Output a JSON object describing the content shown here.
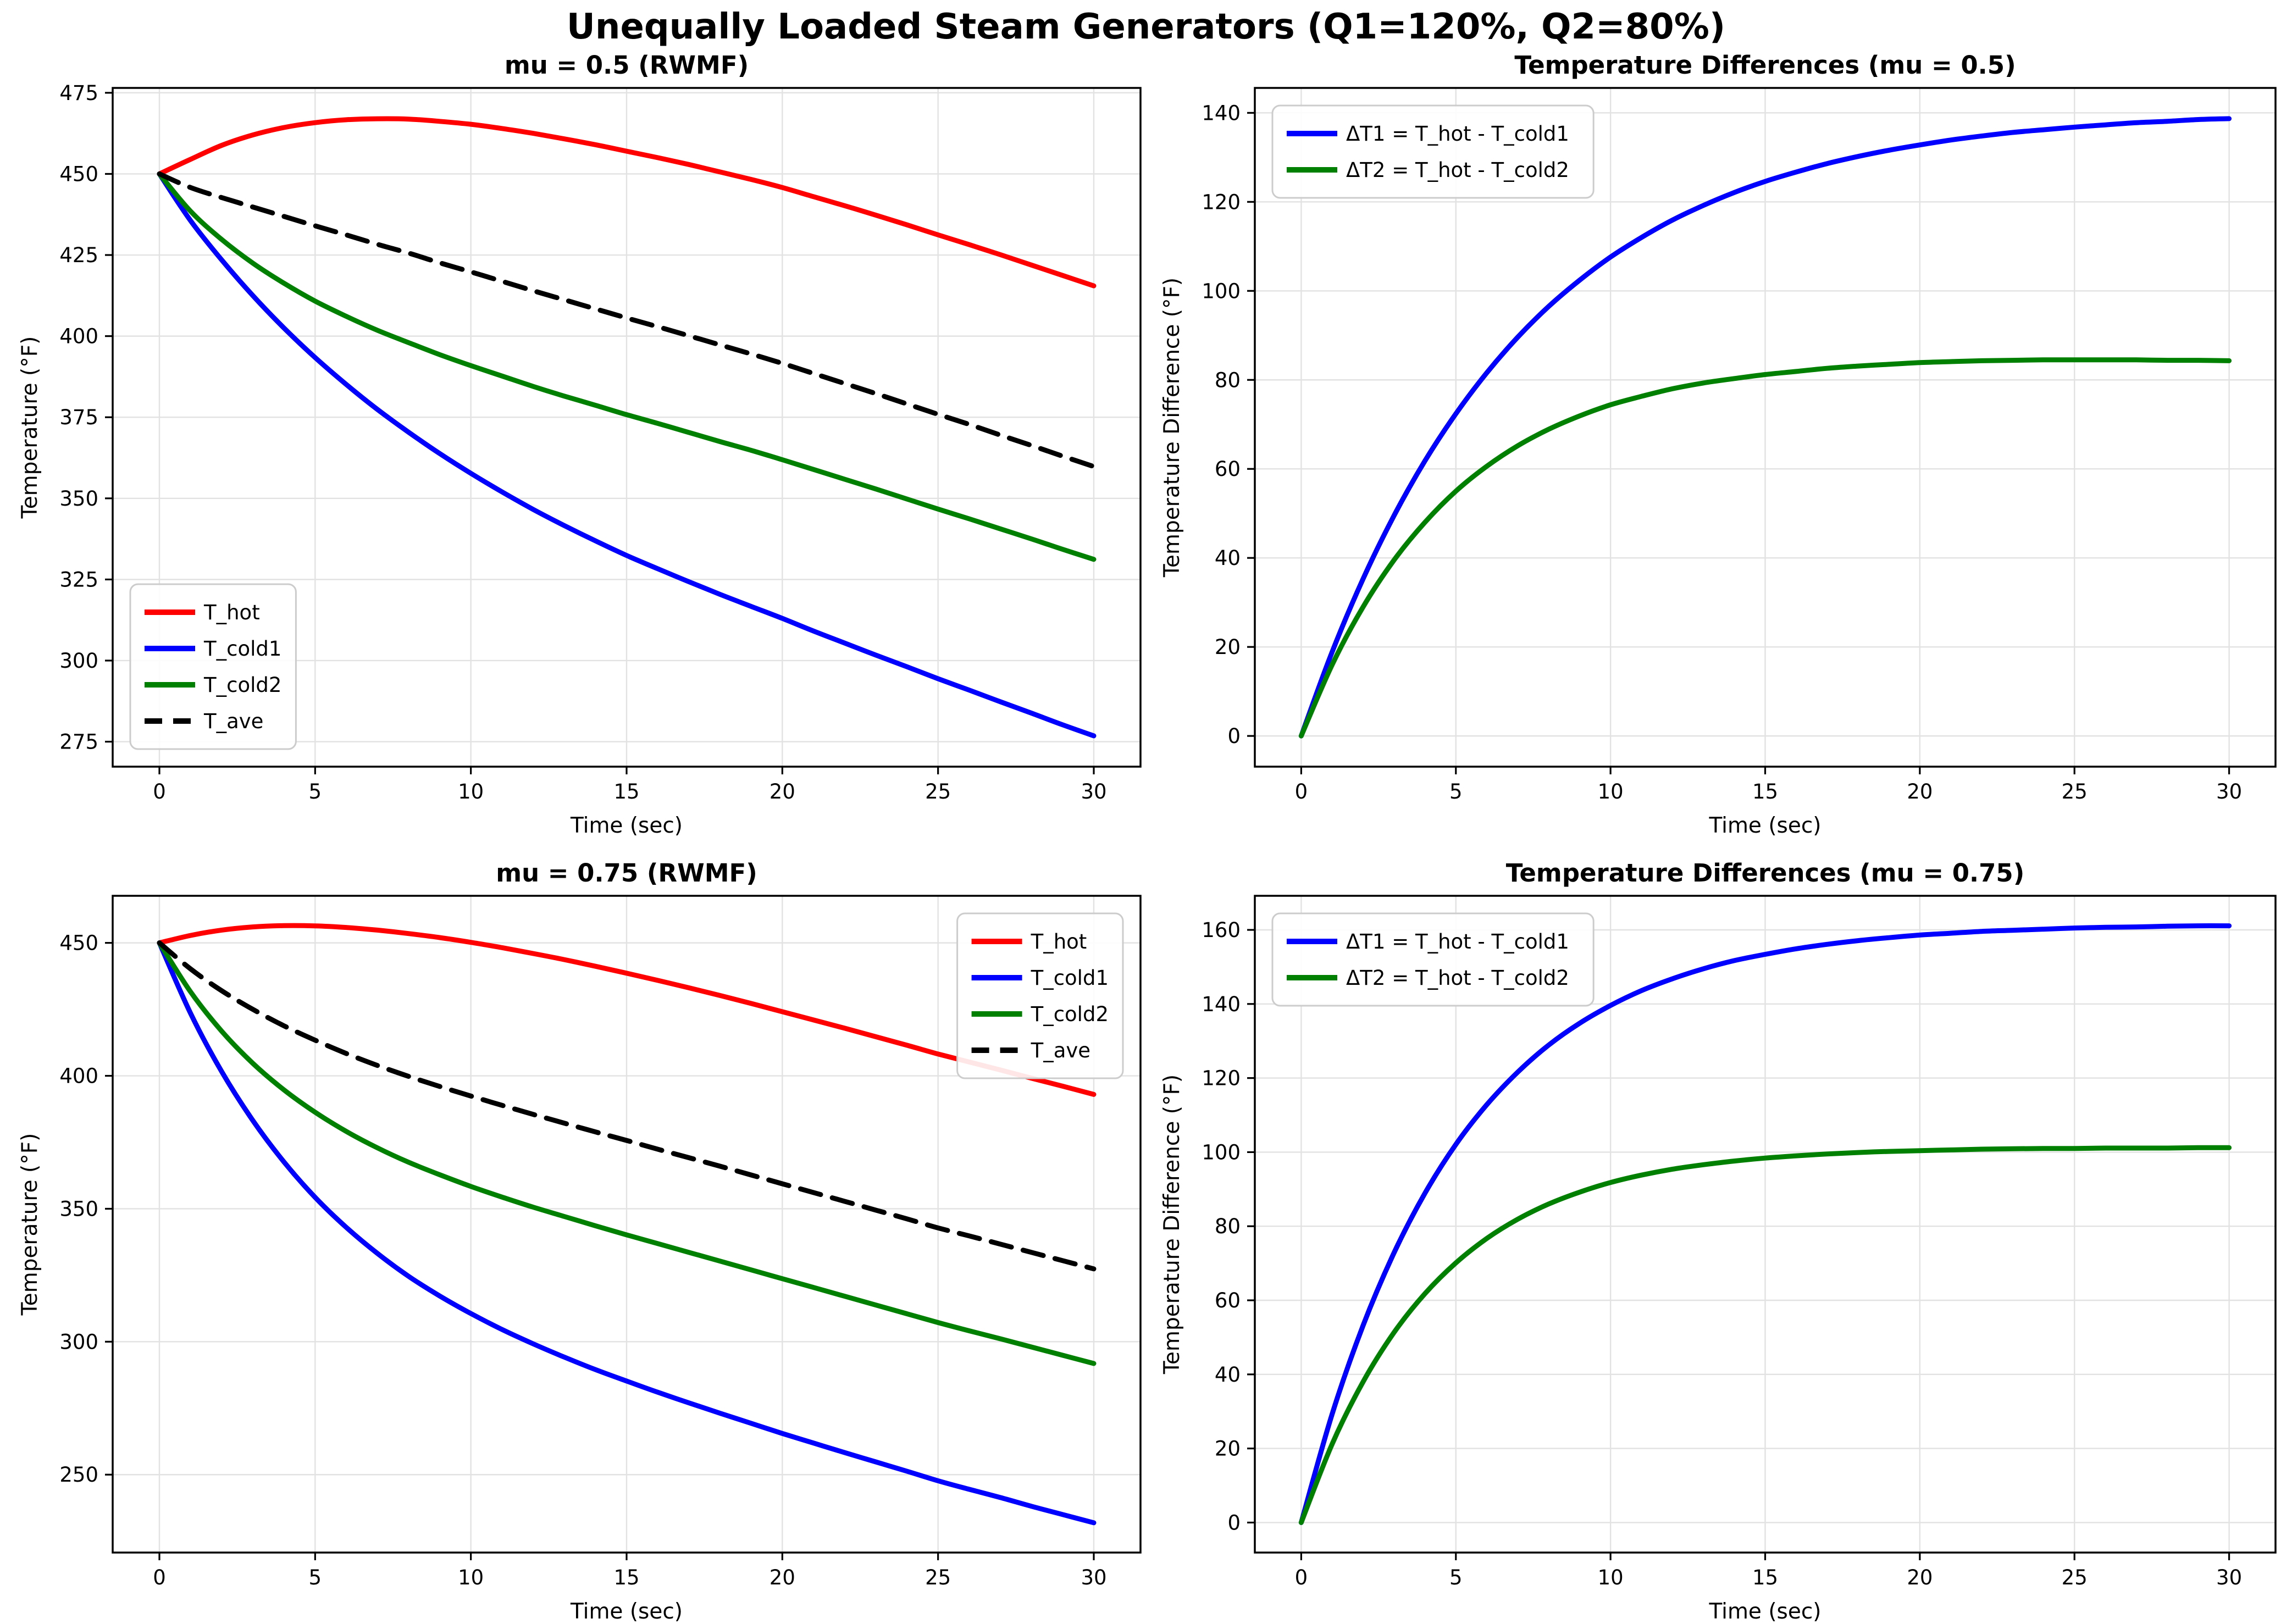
{
  "figure": {
    "suptitle": "Unequally Loaded Steam Generators (Q1=120%, Q2=80%)",
    "background": "#ffffff",
    "grid_color": "#e2e2e2",
    "frame_color": "#000000",
    "text_color": "#000000",
    "legend_border_color": "#cccccc"
  },
  "chart_data": [
    {
      "id": "temps-mu-0.5",
      "type": "line",
      "title": "mu = 0.5 (RWMF)",
      "xlabel": "Time (sec)",
      "ylabel": "Temperature (°F)",
      "xlim": [
        -1.5,
        31.5
      ],
      "ylim": [
        267.3,
        476.5
      ],
      "xticks": [
        0,
        5,
        10,
        15,
        20,
        25,
        30
      ],
      "yticks": [
        275,
        300,
        325,
        350,
        375,
        400,
        425,
        450,
        475
      ],
      "grid": true,
      "legend_loc": "lower-left",
      "x": [
        0,
        1,
        2,
        3,
        4,
        5,
        6,
        7,
        8,
        9,
        10,
        11,
        12,
        13,
        14,
        15,
        16,
        17,
        18,
        19,
        20,
        21,
        22,
        23,
        24,
        25,
        26,
        27,
        28,
        29,
        30
      ],
      "series": [
        {
          "label": "T_hot",
          "color": "#ff0000",
          "dash": false,
          "values": [
            450.0,
            454.5,
            458.8,
            462.0,
            464.3,
            465.8,
            466.7,
            467.0,
            466.9,
            466.2,
            465.3,
            464.0,
            462.5,
            460.8,
            459.0,
            457.0,
            455.0,
            452.9,
            450.6,
            448.3,
            445.8,
            443.0,
            440.2,
            437.3,
            434.3,
            431.2,
            428.2,
            425.1,
            421.9,
            418.7,
            415.5
          ]
        },
        {
          "label": "T_cold1",
          "color": "#0000ff",
          "dash": false,
          "values": [
            450.0,
            435.6,
            423.5,
            412.5,
            402.5,
            393.4,
            385.1,
            377.4,
            370.4,
            363.8,
            357.7,
            352.0,
            346.6,
            341.6,
            336.9,
            332.4,
            328.3,
            324.3,
            320.4,
            316.7,
            313.0,
            309.1,
            305.4,
            301.7,
            298.1,
            294.4,
            290.9,
            287.3,
            283.8,
            280.2,
            276.8
          ]
        },
        {
          "label": "T_cold2",
          "color": "#008000",
          "dash": false,
          "values": [
            450.0,
            438.5,
            429.8,
            422.5,
            416.3,
            410.8,
            406.1,
            401.8,
            398.0,
            394.3,
            390.9,
            387.7,
            384.5,
            381.5,
            378.7,
            375.8,
            373.1,
            370.3,
            367.5,
            364.8,
            361.9,
            358.9,
            355.9,
            352.9,
            349.8,
            346.7,
            343.7,
            340.6,
            337.5,
            334.3,
            331.2
          ]
        },
        {
          "label": "T_ave",
          "color": "#000000",
          "dash": true,
          "values": [
            450.0,
            445.8,
            442.7,
            439.8,
            436.9,
            434.0,
            431.2,
            428.3,
            425.6,
            422.6,
            419.8,
            416.9,
            414.0,
            411.2,
            408.4,
            405.6,
            402.9,
            400.1,
            397.3,
            394.5,
            391.6,
            388.5,
            385.4,
            382.3,
            379.1,
            375.9,
            372.8,
            369.5,
            366.3,
            363.0,
            359.8
          ]
        }
      ]
    },
    {
      "id": "diffs-mu-0.5",
      "type": "line",
      "title": "Temperature Differences (mu = 0.5)",
      "xlabel": "Time (sec)",
      "ylabel": "Temperature Difference (°F)",
      "xlim": [
        -1.5,
        31.5
      ],
      "ylim": [
        -6.9,
        145.6
      ],
      "xticks": [
        0,
        5,
        10,
        15,
        20,
        25,
        30
      ],
      "yticks": [
        0,
        20,
        40,
        60,
        80,
        100,
        120,
        140
      ],
      "grid": true,
      "legend_loc": "upper-left",
      "x": [
        0,
        1,
        2,
        3,
        4,
        5,
        6,
        7,
        8,
        9,
        10,
        11,
        12,
        13,
        14,
        15,
        16,
        17,
        18,
        19,
        20,
        21,
        22,
        23,
        24,
        25,
        26,
        27,
        28,
        29,
        30
      ],
      "series": [
        {
          "label": "ΔT1 = T_hot - T_cold1",
          "color": "#0000ff",
          "dash": false,
          "values": [
            0.0,
            18.9,
            35.3,
            49.5,
            61.8,
            72.4,
            81.6,
            89.6,
            96.5,
            102.4,
            107.6,
            112.0,
            115.9,
            119.2,
            122.1,
            124.6,
            126.7,
            128.6,
            130.2,
            131.6,
            132.8,
            133.9,
            134.8,
            135.6,
            136.2,
            136.8,
            137.3,
            137.8,
            138.1,
            138.5,
            138.7
          ]
        },
        {
          "label": "ΔT2 = T_hot - T_cold2",
          "color": "#008000",
          "dash": false,
          "values": [
            0.0,
            16.0,
            29.0,
            39.5,
            48.0,
            55.0,
            60.6,
            65.2,
            68.9,
            71.9,
            74.4,
            76.3,
            78.0,
            79.3,
            80.3,
            81.2,
            81.9,
            82.6,
            83.1,
            83.5,
            83.9,
            84.1,
            84.3,
            84.4,
            84.5,
            84.5,
            84.5,
            84.5,
            84.4,
            84.4,
            84.3
          ]
        }
      ]
    },
    {
      "id": "temps-mu-0.75",
      "type": "line",
      "title": "mu = 0.75 (RWMF)",
      "xlabel": "Time (sec)",
      "ylabel": "Temperature (°F)",
      "xlim": [
        -1.5,
        31.5
      ],
      "ylim": [
        220.7,
        467.7
      ],
      "xticks": [
        0,
        5,
        10,
        15,
        20,
        25,
        30
      ],
      "yticks": [
        250,
        300,
        350,
        400,
        450
      ],
      "grid": true,
      "legend_loc": "upper-right",
      "x": [
        0,
        1,
        2,
        3,
        4,
        5,
        6,
        7,
        8,
        9,
        10,
        11,
        12,
        13,
        14,
        15,
        16,
        17,
        18,
        19,
        20,
        21,
        22,
        23,
        24,
        25,
        26,
        27,
        28,
        29,
        30
      ],
      "series": [
        {
          "label": "T_hot",
          "color": "#ff0000",
          "dash": false,
          "values": [
            450.0,
            452.8,
            454.8,
            456.0,
            456.5,
            456.4,
            455.8,
            454.8,
            453.5,
            452.0,
            450.2,
            448.2,
            446.0,
            443.7,
            441.2,
            438.6,
            435.9,
            433.1,
            430.2,
            427.2,
            424.1,
            421.0,
            417.9,
            414.7,
            411.5,
            408.2,
            405.2,
            402.2,
            399.1,
            396.1,
            393.0
          ]
        },
        {
          "label": "T_cold1",
          "color": "#0000ff",
          "dash": false,
          "values": [
            450.0,
            423.5,
            401.6,
            383.2,
            367.6,
            354.3,
            343.0,
            333.2,
            324.6,
            317.2,
            310.6,
            304.6,
            299.2,
            294.2,
            289.5,
            285.2,
            281.0,
            277.0,
            273.1,
            269.3,
            265.5,
            261.9,
            258.3,
            254.8,
            251.3,
            247.7,
            244.5,
            241.4,
            238.1,
            235.0,
            231.9
          ]
        },
        {
          "label": "T_cold2",
          "color": "#008000",
          "dash": false,
          "values": [
            450.0,
            431.6,
            416.8,
            404.7,
            394.7,
            386.3,
            379.1,
            372.9,
            367.5,
            362.8,
            358.4,
            354.4,
            350.6,
            347.1,
            343.6,
            340.2,
            336.9,
            333.6,
            330.3,
            327.0,
            323.7,
            320.4,
            317.1,
            313.8,
            310.5,
            307.2,
            304.1,
            301.1,
            298.0,
            294.9,
            291.8
          ]
        },
        {
          "label": "T_ave",
          "color": "#000000",
          "dash": true,
          "values": [
            450.0,
            440.2,
            432.0,
            425.0,
            418.8,
            413.4,
            408.4,
            403.9,
            399.8,
            396.0,
            392.4,
            388.9,
            385.5,
            382.2,
            378.9,
            375.7,
            372.4,
            369.2,
            366.0,
            362.7,
            359.4,
            356.1,
            352.8,
            349.5,
            346.2,
            342.8,
            339.8,
            336.7,
            333.6,
            330.5,
            327.4
          ]
        }
      ]
    },
    {
      "id": "diffs-mu-0.75",
      "type": "line",
      "title": "Temperature Differences (mu = 0.75)",
      "xlabel": "Time (sec)",
      "ylabel": "Temperature Difference (°F)",
      "xlim": [
        -1.5,
        31.5
      ],
      "ylim": [
        -8.1,
        169.2
      ],
      "xticks": [
        0,
        5,
        10,
        15,
        20,
        25,
        30
      ],
      "yticks": [
        0,
        20,
        40,
        60,
        80,
        100,
        120,
        140,
        160
      ],
      "grid": true,
      "legend_loc": "upper-left",
      "x": [
        0,
        1,
        2,
        3,
        4,
        5,
        6,
        7,
        8,
        9,
        10,
        11,
        12,
        13,
        14,
        15,
        16,
        17,
        18,
        19,
        20,
        21,
        22,
        23,
        24,
        25,
        26,
        27,
        28,
        29,
        30
      ],
      "series": [
        {
          "label": "ΔT1 = T_hot - T_cold1",
          "color": "#0000ff",
          "dash": false,
          "values": [
            0.0,
            29.3,
            53.2,
            72.8,
            88.9,
            102.1,
            112.8,
            121.6,
            128.9,
            134.8,
            139.6,
            143.6,
            146.8,
            149.5,
            151.7,
            153.4,
            154.9,
            156.1,
            157.1,
            157.9,
            158.6,
            159.1,
            159.6,
            159.9,
            160.2,
            160.5,
            160.7,
            160.8,
            161.0,
            161.1,
            161.1
          ]
        },
        {
          "label": "ΔT2 = T_hot - T_cold2",
          "color": "#008000",
          "dash": false,
          "values": [
            0.0,
            21.2,
            38.0,
            51.3,
            61.8,
            70.1,
            76.7,
            81.9,
            86.0,
            89.2,
            91.8,
            93.8,
            95.4,
            96.6,
            97.6,
            98.4,
            99.0,
            99.5,
            99.9,
            100.2,
            100.4,
            100.6,
            100.8,
            100.9,
            101.0,
            101.0,
            101.1,
            101.1,
            101.1,
            101.2,
            101.2
          ]
        }
      ]
    }
  ]
}
